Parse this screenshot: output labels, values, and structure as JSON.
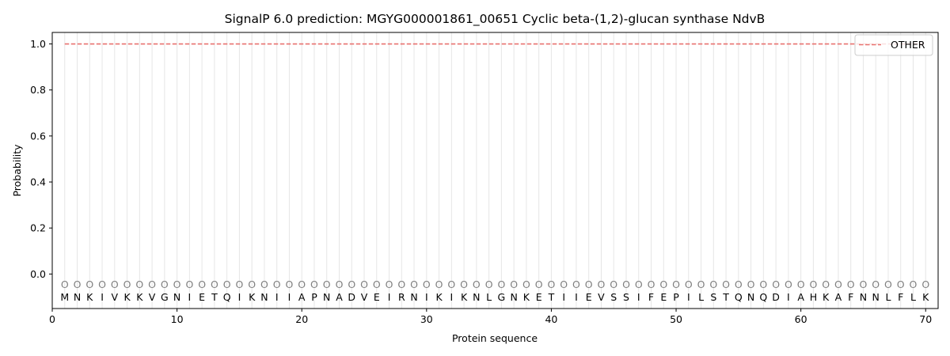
{
  "chart_data": {
    "type": "line",
    "title": "SignalP 6.0 prediction: MGYG000001861_00651 Cyclic beta-(1,2)-glucan synthase NdvB",
    "xlabel": "Protein sequence",
    "ylabel": "Probability",
    "xlim": [
      0,
      71
    ],
    "ylim": [
      -0.15,
      1.05
    ],
    "x_ticks": [
      0,
      10,
      20,
      30,
      40,
      50,
      60,
      70
    ],
    "y_ticks": [
      0.0,
      0.2,
      0.4,
      0.6,
      0.8,
      1.0
    ],
    "grid": "vertical lines at each residue",
    "legend_position": "top-right",
    "sequence": [
      "M",
      "N",
      "K",
      "I",
      "V",
      "K",
      "K",
      "V",
      "G",
      "N",
      "I",
      "E",
      "T",
      "Q",
      "I",
      "K",
      "N",
      "I",
      "I",
      "A",
      "P",
      "N",
      "A",
      "D",
      "V",
      "E",
      "I",
      "R",
      "N",
      "I",
      "K",
      "I",
      "K",
      "N",
      "L",
      "G",
      "N",
      "K",
      "E",
      "T",
      "I",
      "I",
      "E",
      "V",
      "S",
      "S",
      "I",
      "F",
      "E",
      "P",
      "I",
      "L",
      "S",
      "T",
      "Q",
      "N",
      "Q",
      "D",
      "I",
      "A",
      "H",
      "K",
      "A",
      "F",
      "N",
      "N",
      "L",
      "F",
      "L",
      "K"
    ],
    "state_label": "O",
    "series": [
      {
        "name": "OTHER",
        "color": "#e8716f",
        "style": "dashed",
        "x": [
          1,
          70
        ],
        "y": [
          1.0,
          1.0
        ]
      }
    ]
  }
}
